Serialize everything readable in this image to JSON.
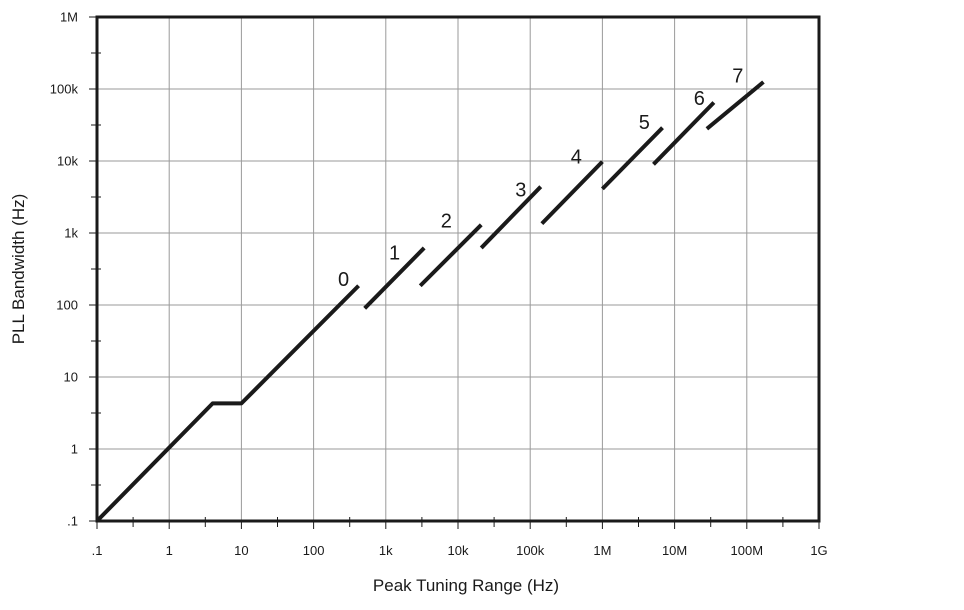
{
  "chart_data": {
    "type": "line",
    "title": "",
    "xlabel": "Peak Tuning Range (Hz)",
    "ylabel": "PLL Bandwidth (Hz)",
    "x_scale": "log",
    "y_scale": "log",
    "xlim": [
      0.1,
      1000000000
    ],
    "ylim": [
      0.1,
      1000000
    ],
    "grid": true,
    "legend": "none",
    "colors": {
      "line": "#1a1a1a",
      "grid": "#9a9a9a",
      "frame": "#1a1a1a",
      "background": "#ffffff"
    },
    "x_ticks": [
      {
        "value": 0.1,
        "label": ".1"
      },
      {
        "value": 1,
        "label": "1"
      },
      {
        "value": 10,
        "label": "10"
      },
      {
        "value": 100,
        "label": "100"
      },
      {
        "value": 1000,
        "label": "1k"
      },
      {
        "value": 10000,
        "label": "10k"
      },
      {
        "value": 100000,
        "label": "100k"
      },
      {
        "value": 1000000,
        "label": "1M"
      },
      {
        "value": 10000000,
        "label": "10M"
      },
      {
        "value": 100000000,
        "label": "100M"
      },
      {
        "value": 1000000000,
        "label": "1G"
      }
    ],
    "y_ticks": [
      {
        "value": 0.1,
        "label": ".1"
      },
      {
        "value": 1,
        "label": "1"
      },
      {
        "value": 10,
        "label": "10"
      },
      {
        "value": 100,
        "label": "100"
      },
      {
        "value": 1000,
        "label": "1k"
      },
      {
        "value": 10000,
        "label": "10k"
      },
      {
        "value": 100000,
        "label": "100k"
      },
      {
        "value": 1000000,
        "label": "1M"
      }
    ],
    "series": [
      {
        "label": "0",
        "x": [
          0.1,
          4,
          10,
          420
        ],
        "y": [
          0.1,
          4.3,
          4.3,
          185
        ]
      },
      {
        "label": "1",
        "x": [
          510,
          3400
        ],
        "y": [
          90,
          620
        ]
      },
      {
        "label": "2",
        "x": [
          3000,
          21000
        ],
        "y": [
          185,
          1300
        ]
      },
      {
        "label": "3",
        "x": [
          21000,
          140000
        ],
        "y": [
          620,
          4400
        ]
      },
      {
        "label": "4",
        "x": [
          145000,
          1000000
        ],
        "y": [
          1350,
          9800
        ]
      },
      {
        "label": "5",
        "x": [
          1000000,
          6800000
        ],
        "y": [
          4100,
          29000
        ]
      },
      {
        "label": "6",
        "x": [
          5100000,
          35000000
        ],
        "y": [
          9000,
          65000
        ]
      },
      {
        "label": "7",
        "x": [
          28000000,
          170000000
        ],
        "y": [
          28000,
          125000
        ]
      }
    ],
    "annotations": [
      {
        "text": "0",
        "x": 260,
        "y": 230
      },
      {
        "text": "1",
        "x": 1320,
        "y": 540
      },
      {
        "text": "2",
        "x": 6900,
        "y": 1480
      },
      {
        "text": "3",
        "x": 74000,
        "y": 4000
      },
      {
        "text": "4",
        "x": 435000,
        "y": 11500
      },
      {
        "text": "5",
        "x": 3800000,
        "y": 35000
      },
      {
        "text": "6",
        "x": 22000000,
        "y": 75000
      },
      {
        "text": "7",
        "x": 75000000,
        "y": 155000
      }
    ]
  }
}
